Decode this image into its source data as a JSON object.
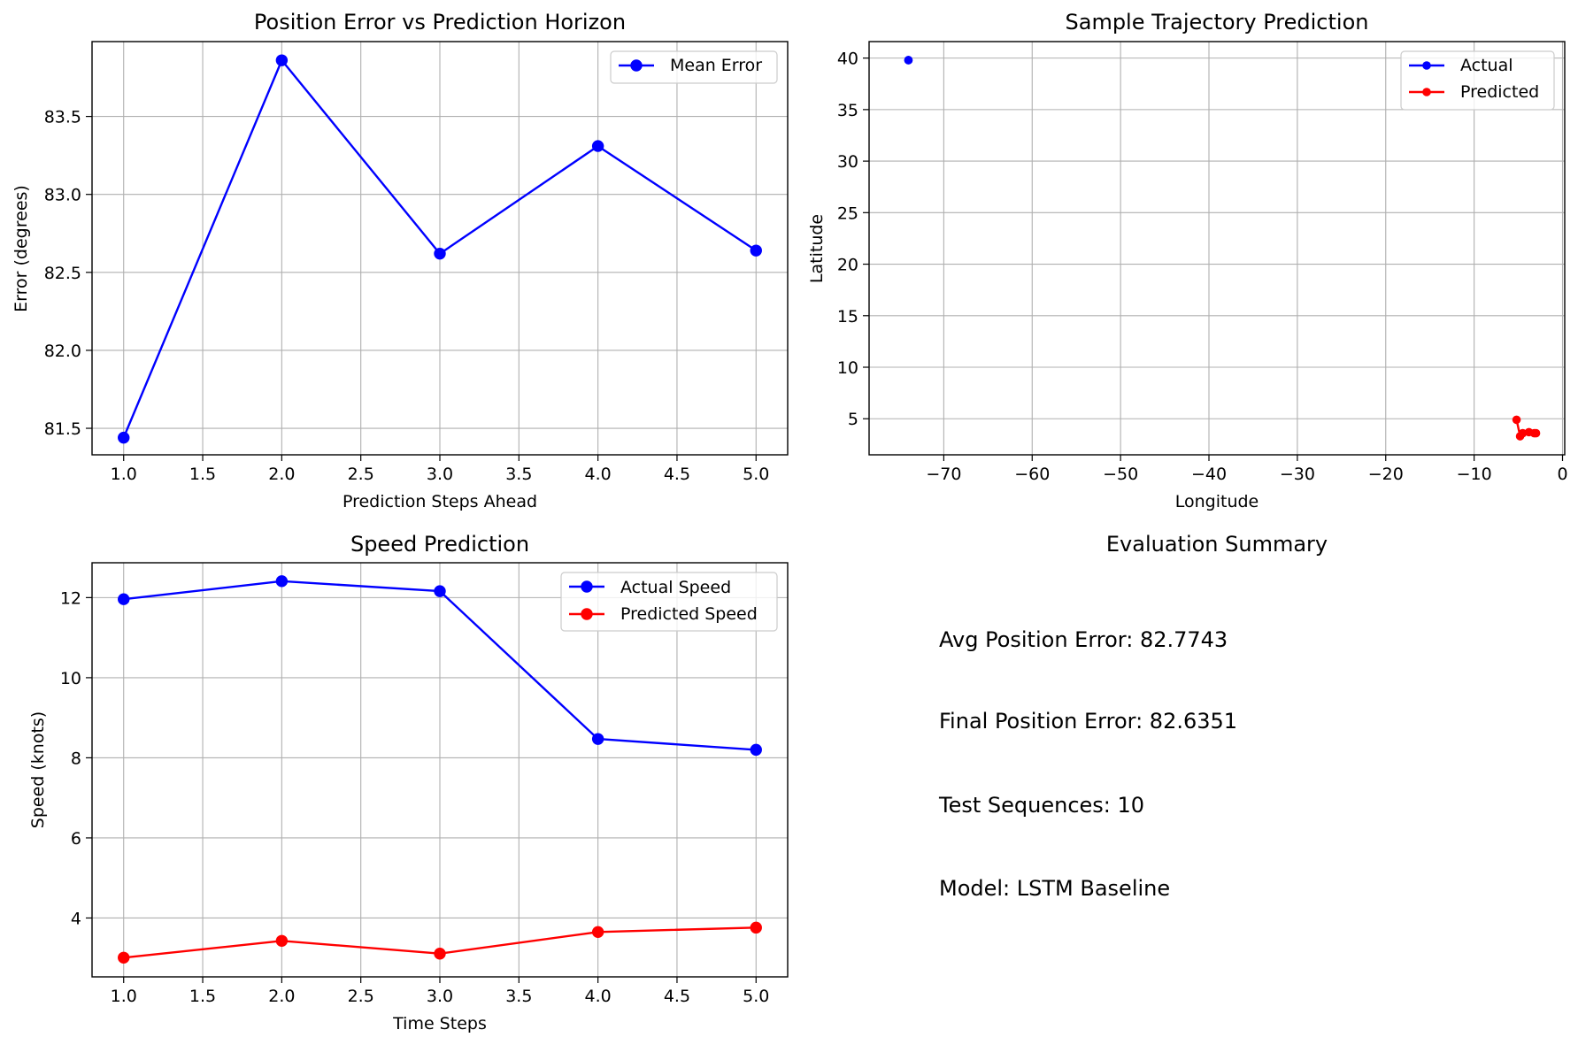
{
  "figure": {
    "background": "#ffffff",
    "grid_color": "#b0b0b0"
  },
  "chart_data": [
    {
      "id": "position-error",
      "type": "line",
      "title": "Position Error vs Prediction Horizon",
      "xlabel": "Prediction Steps Ahead",
      "ylabel": "Error (degrees)",
      "xlim": [
        0.8,
        5.2
      ],
      "ylim": [
        81.33,
        83.98
      ],
      "xticks": [
        1.0,
        1.5,
        2.0,
        2.5,
        3.0,
        3.5,
        4.0,
        4.5,
        5.0
      ],
      "xtick_labels": [
        "1.0",
        "1.5",
        "2.0",
        "2.5",
        "3.0",
        "3.5",
        "4.0",
        "4.5",
        "5.0"
      ],
      "yticks": [
        81.5,
        82.0,
        82.5,
        83.0,
        83.5
      ],
      "ytick_labels": [
        "81.5",
        "82.0",
        "82.5",
        "83.0",
        "83.5"
      ],
      "grid": true,
      "legend_position": "top-right",
      "series": [
        {
          "name": "Mean Error",
          "color": "#0000ff",
          "marker": "circle",
          "x": [
            1,
            2,
            3,
            4,
            5
          ],
          "y": [
            81.44,
            83.86,
            82.62,
            83.31,
            82.64
          ]
        }
      ]
    },
    {
      "id": "trajectory",
      "type": "line",
      "title": "Sample Trajectory Prediction",
      "xlabel": "Longitude",
      "ylabel": "Latitude",
      "xlim": [
        -78.45,
        0.25
      ],
      "ylim": [
        1.5,
        41.6
      ],
      "xticks": [
        -70,
        -60,
        -50,
        -40,
        -30,
        -20,
        -10,
        0
      ],
      "xtick_labels": [
        "−70",
        "−60",
        "−50",
        "−40",
        "−30",
        "−20",
        "−10",
        "0"
      ],
      "yticks": [
        5,
        10,
        15,
        20,
        25,
        30,
        35,
        40
      ],
      "ytick_labels": [
        "5",
        "10",
        "15",
        "20",
        "25",
        "30",
        "35",
        "40"
      ],
      "grid": true,
      "legend_position": "top-right",
      "series": [
        {
          "name": "Actual",
          "color": "#0000ff",
          "marker": "small-circle",
          "x": [
            -74.0,
            -74.0
          ],
          "y": [
            39.8,
            39.8
          ]
        },
        {
          "name": "Predicted",
          "color": "#ff0000",
          "marker": "small-circle",
          "x": [
            -5.2,
            -4.8,
            -4.5,
            -3.8,
            -3.2,
            -3.0
          ],
          "y": [
            4.9,
            3.3,
            3.6,
            3.7,
            3.6,
            3.6
          ]
        }
      ]
    },
    {
      "id": "speed",
      "type": "line",
      "title": "Speed Prediction",
      "xlabel": "Time Steps",
      "ylabel": "Speed (knots)",
      "xlim": [
        0.8,
        5.2
      ],
      "ylim": [
        2.53,
        12.87
      ],
      "xticks": [
        1.0,
        1.5,
        2.0,
        2.5,
        3.0,
        3.5,
        4.0,
        4.5,
        5.0
      ],
      "xtick_labels": [
        "1.0",
        "1.5",
        "2.0",
        "2.5",
        "3.0",
        "3.5",
        "4.0",
        "4.5",
        "5.0"
      ],
      "yticks": [
        4,
        6,
        8,
        10,
        12
      ],
      "ytick_labels": [
        "4",
        "6",
        "8",
        "10",
        "12"
      ],
      "grid": true,
      "legend_position": "top-right",
      "series": [
        {
          "name": "Actual Speed",
          "color": "#0000ff",
          "marker": "circle",
          "x": [
            1,
            2,
            3,
            4,
            5
          ],
          "y": [
            11.96,
            12.41,
            12.16,
            8.47,
            8.2
          ]
        },
        {
          "name": "Predicted Speed",
          "color": "#ff0000",
          "marker": "circle",
          "x": [
            1,
            2,
            3,
            4,
            5
          ],
          "y": [
            3.01,
            3.43,
            3.11,
            3.65,
            3.76
          ]
        }
      ]
    },
    {
      "id": "summary",
      "type": "table",
      "title": "Evaluation Summary",
      "lines": [
        "Avg Position Error: 82.7743",
        "Final Position Error: 82.6351",
        "Test Sequences: 10",
        "Model: LSTM Baseline"
      ]
    }
  ]
}
